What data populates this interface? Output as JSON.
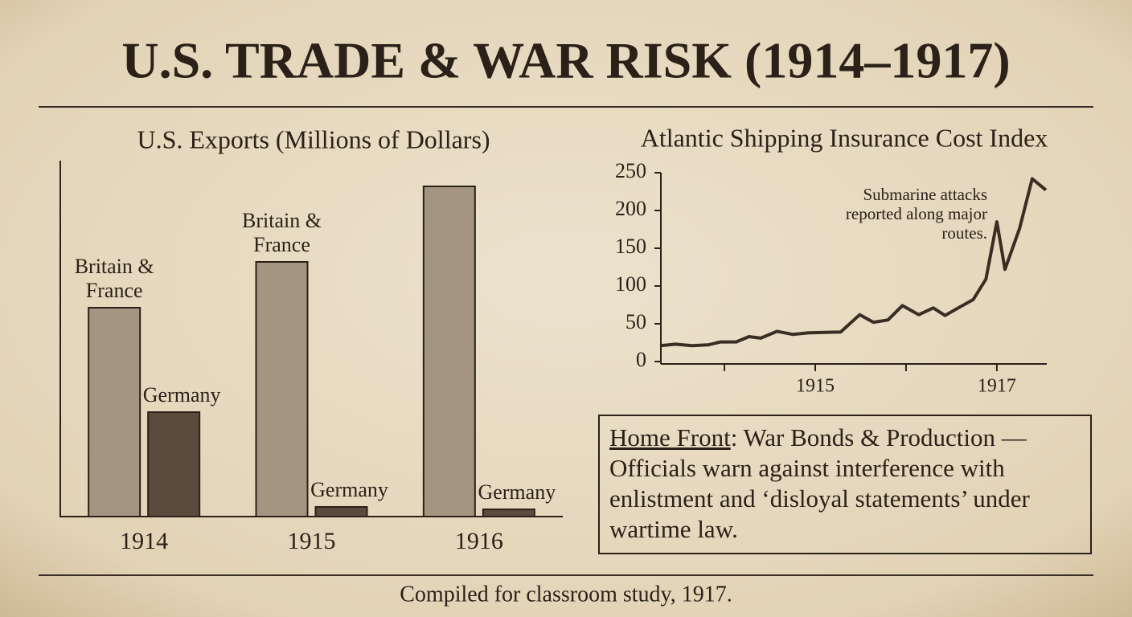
{
  "title": "U.S. TRADE & WAR RISK (1914–1917)",
  "chart_data": [
    {
      "type": "bar",
      "title": "U.S. Exports (Millions of Dollars)",
      "categories": [
        "1914",
        "1915",
        "1916"
      ],
      "series": [
        {
          "name": "Britain & France",
          "color": "#a39580",
          "values": [
            260,
            317,
            411
          ]
        },
        {
          "name": "Germany",
          "color": "#5b4b3d",
          "values": [
            130,
            12,
            9
          ]
        }
      ],
      "ylim": [
        0,
        443
      ]
    },
    {
      "type": "line",
      "title": "Atlantic Shipping Insurance Cost Index",
      "x": [
        1913.3,
        1913.46,
        1913.64,
        1913.82,
        1913.96,
        1914.13,
        1914.27,
        1914.4,
        1914.58,
        1914.75,
        1914.93,
        1915.28,
        1915.49,
        1915.64,
        1915.8,
        1915.96,
        1916.14,
        1916.3,
        1916.43,
        1916.59,
        1916.74,
        1916.88,
        1917.0,
        1917.09,
        1917.25,
        1917.39,
        1917.54
      ],
      "series": [
        {
          "name": "Insurance cost index",
          "color": "#3a2e24",
          "values": [
            21,
            23,
            21,
            22,
            26,
            26,
            33,
            31,
            40,
            36,
            38,
            39,
            62,
            52,
            55,
            74,
            62,
            71,
            61,
            72,
            82,
            109,
            185,
            122,
            176,
            242,
            227
          ]
        }
      ],
      "xlim": [
        1913.3,
        1917.55
      ],
      "xticks": [
        {
          "value": 1914,
          "label": null
        },
        1915,
        {
          "value": 1916,
          "label": null
        },
        1917
      ],
      "ylim": [
        0,
        250
      ],
      "yticks": [
        0,
        50,
        100,
        150,
        200,
        250
      ],
      "annotation": "Submarine attacks reported along major routes."
    }
  ],
  "home_front": {
    "heading": "Home Front",
    "text": ": War Bonds & Production — Officials warn against interference with enlistment and ‘disloyal statements’ under wartime law."
  },
  "footer": "Compiled for classroom study, 1917."
}
